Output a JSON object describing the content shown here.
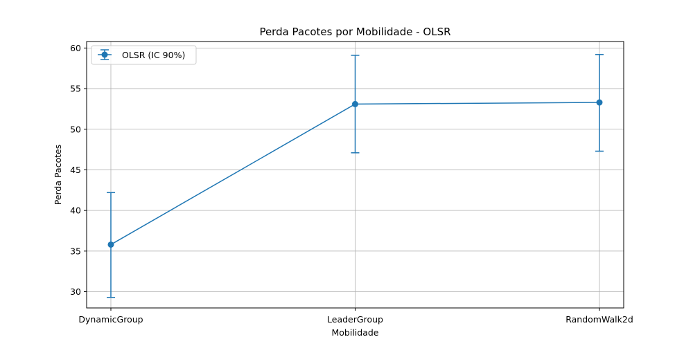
{
  "chart_data": {
    "type": "line",
    "title": "Perda Pacotes por Mobilidade - OLSR",
    "xlabel": "Mobilidade",
    "ylabel": "Perda Pacotes",
    "categories": [
      "DynamicGroup",
      "LeaderGroup",
      "RandomWalk2d"
    ],
    "series": [
      {
        "name": "OLSR (IC 90%)",
        "values": [
          35.8,
          53.1,
          53.3
        ],
        "ci_lower": [
          29.3,
          47.1,
          47.3
        ],
        "ci_upper": [
          42.2,
          59.1,
          59.2
        ],
        "color": "#1f77b4"
      }
    ],
    "ylim": [
      28.0,
      60.8
    ],
    "yticks": [
      30,
      35,
      40,
      45,
      50,
      55,
      60
    ],
    "grid": true,
    "legend_position": "top-left"
  }
}
